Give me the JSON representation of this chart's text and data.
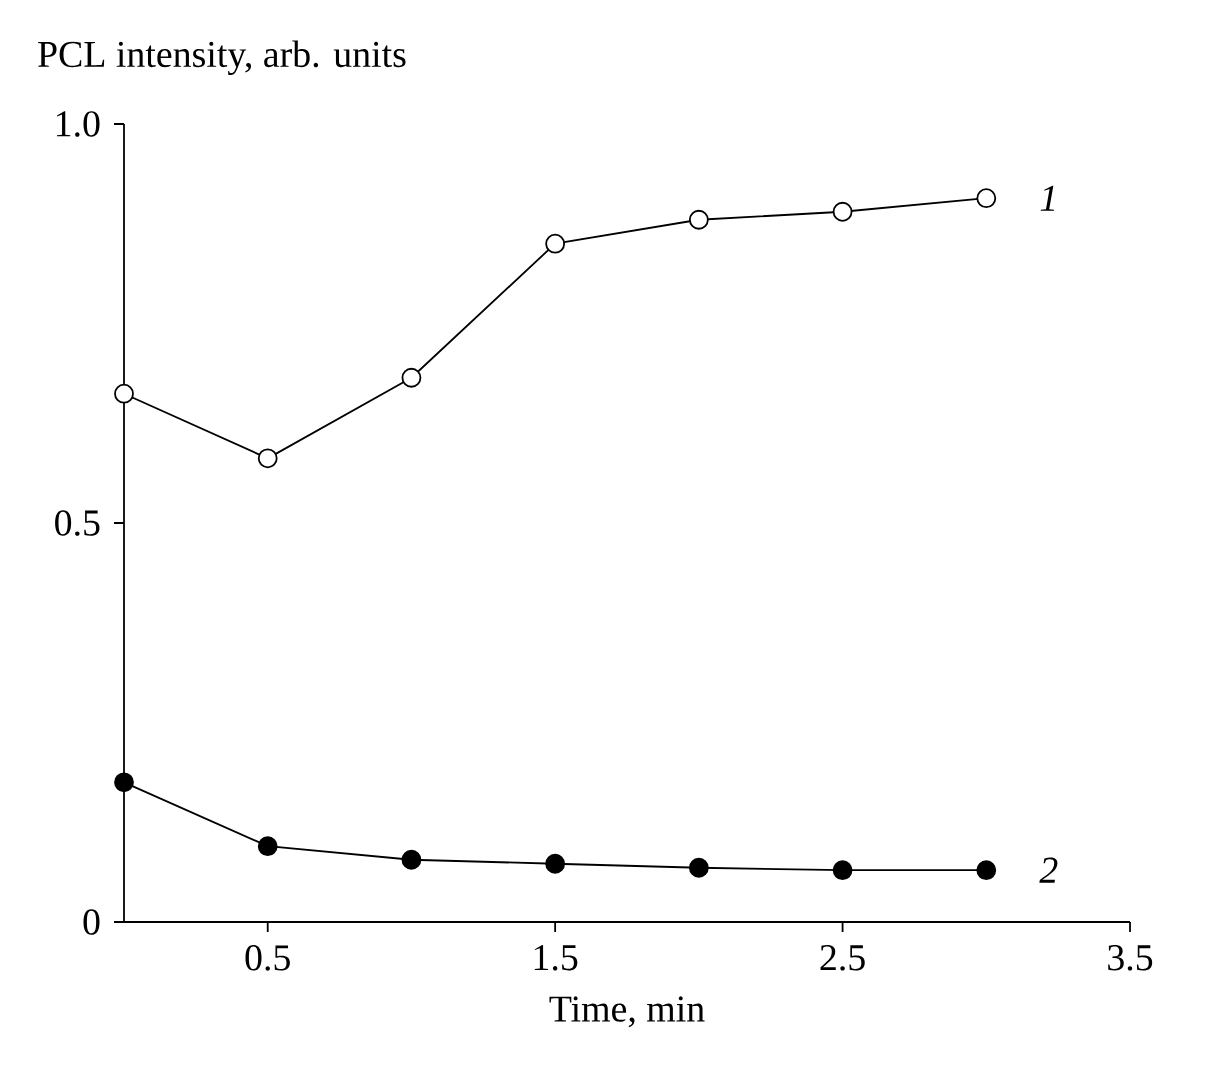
{
  "chart_data": {
    "type": "line",
    "xlabel": "Time, min",
    "ylabel": "PCL intensity, arb. units",
    "x": [
      0,
      0.5,
      1.0,
      1.5,
      2.0,
      2.5,
      3.0
    ],
    "series": [
      {
        "name": "1",
        "color": "#000000",
        "values": [
          0.662,
          0.581,
          0.682,
          0.85,
          0.88,
          0.89,
          0.907
        ]
      },
      {
        "name": "2",
        "color": "#000000",
        "values": [
          0.175,
          0.095,
          0.078,
          0.073,
          0.068,
          0.065,
          0.065
        ]
      }
    ],
    "xlim": [
      0,
      3.5
    ],
    "ylim": [
      0,
      1
    ],
    "xticks": [
      0.5,
      1.5,
      2.5,
      3.5
    ],
    "yticks": [
      0,
      0.5,
      {
        "value": 1,
        "label": "1.0"
      }
    ],
    "marker": "circle",
    "line_style": "solid"
  }
}
